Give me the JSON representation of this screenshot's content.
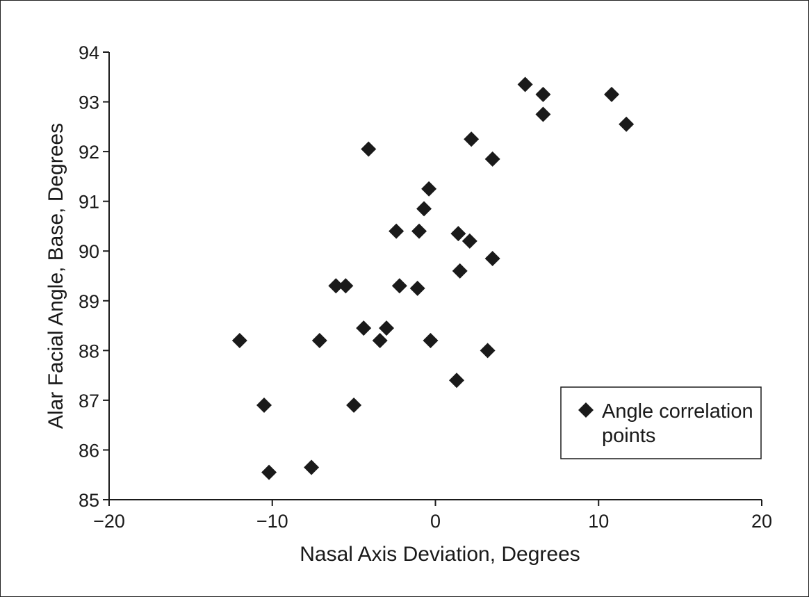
{
  "chart_data": {
    "type": "scatter",
    "title": "",
    "xlabel": "Nasal Axis Deviation, Degrees",
    "ylabel": "Alar Facial Angle, Base, Degrees",
    "xlim": [
      -20,
      20
    ],
    "ylim": [
      85,
      94
    ],
    "xticks": [
      "−20",
      "−10",
      "0",
      "10",
      "20"
    ],
    "xtick_values": [
      -20,
      -10,
      0,
      10,
      20
    ],
    "yticks": [
      "85",
      "86",
      "87",
      "88",
      "89",
      "90",
      "91",
      "92",
      "93",
      "94"
    ],
    "ytick_values": [
      85,
      86,
      87,
      88,
      89,
      90,
      91,
      92,
      93,
      94
    ],
    "grid": false,
    "legend_position": "bottom-right",
    "marker": "diamond",
    "marker_color": "#1a1a1a",
    "series": [
      {
        "name": "Angle correlation points",
        "points": [
          {
            "x": -12.0,
            "y": 88.2
          },
          {
            "x": -10.5,
            "y": 86.9
          },
          {
            "x": -10.2,
            "y": 85.55
          },
          {
            "x": -7.6,
            "y": 85.65
          },
          {
            "x": -7.1,
            "y": 88.2
          },
          {
            "x": -6.1,
            "y": 89.3
          },
          {
            "x": -5.5,
            "y": 89.3
          },
          {
            "x": -5.0,
            "y": 86.9
          },
          {
            "x": -4.4,
            "y": 88.45
          },
          {
            "x": -4.1,
            "y": 92.05
          },
          {
            "x": -3.4,
            "y": 88.2
          },
          {
            "x": -3.0,
            "y": 88.45
          },
          {
            "x": -2.4,
            "y": 90.4
          },
          {
            "x": -2.2,
            "y": 89.3
          },
          {
            "x": -1.1,
            "y": 89.25
          },
          {
            "x": -1.0,
            "y": 90.4
          },
          {
            "x": -0.7,
            "y": 90.85
          },
          {
            "x": -0.4,
            "y": 91.25
          },
          {
            "x": -0.3,
            "y": 88.2
          },
          {
            "x": 1.3,
            "y": 87.4
          },
          {
            "x": 1.4,
            "y": 90.35
          },
          {
            "x": 1.5,
            "y": 89.6
          },
          {
            "x": 2.1,
            "y": 90.2
          },
          {
            "x": 2.2,
            "y": 92.25
          },
          {
            "x": 3.2,
            "y": 88.0
          },
          {
            "x": 3.5,
            "y": 91.85
          },
          {
            "x": 3.5,
            "y": 89.85
          },
          {
            "x": 5.5,
            "y": 93.35
          },
          {
            "x": 6.6,
            "y": 93.15
          },
          {
            "x": 6.6,
            "y": 92.75
          },
          {
            "x": 10.8,
            "y": 93.15
          },
          {
            "x": 11.7,
            "y": 92.55
          }
        ]
      }
    ]
  },
  "legend": {
    "line1": "Angle correlation",
    "line2": "points"
  }
}
